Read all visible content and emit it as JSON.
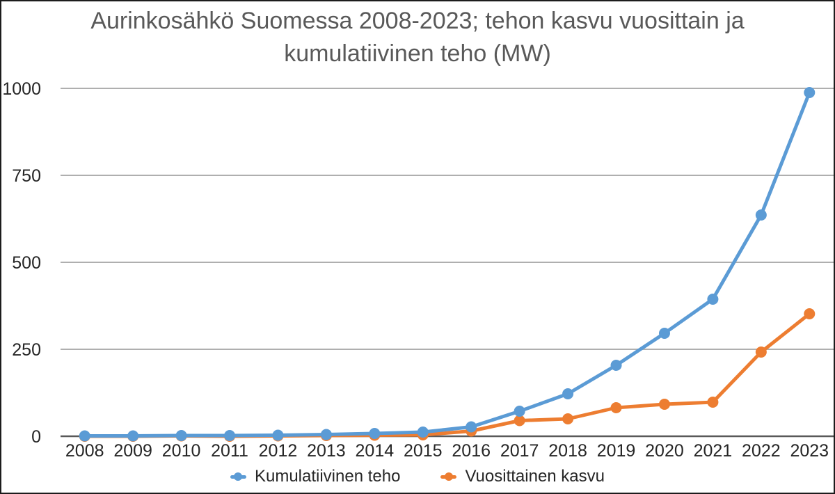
{
  "window": {
    "background": "#ffffff",
    "border_color": "#1c1c1c"
  },
  "chart_data": {
    "type": "line",
    "title": "Aurinkosähkö Suomessa 2008-2023; tehon kasvu vuosittain ja kumulatiivinen teho (MW)",
    "title_lines": [
      "Aurinkosähkö Suomessa 2008-2023; tehon kasvu vuosittain ja",
      "kumulatiivinen teho (MW)"
    ],
    "categories": [
      "2008",
      "2009",
      "2010",
      "2011",
      "2012",
      "2013",
      "2014",
      "2015",
      "2016",
      "2017",
      "2018",
      "2019",
      "2020",
      "2021",
      "2022",
      "2023"
    ],
    "series": [
      {
        "name": "Kumulatiivinen teho",
        "color": "#5B9BD5",
        "values": [
          1,
          1,
          2,
          2,
          3,
          5,
          8,
          12,
          27,
          72,
          122,
          204,
          296,
          394,
          636,
          988
        ]
      },
      {
        "name": "Vuosittainen kasvu",
        "color": "#ED7D31",
        "values": [
          0,
          0,
          1,
          0,
          1,
          2,
          3,
          4,
          15,
          45,
          50,
          82,
          92,
          98,
          242,
          352
        ]
      }
    ],
    "xlabel": "",
    "ylabel": "",
    "ylim": [
      0,
      1000
    ],
    "yticks": [
      0,
      250,
      500,
      750,
      1000
    ],
    "grid": true,
    "legend_position": "bottom"
  },
  "styles": {
    "title_color": "#595959",
    "tick_label_color": "#262626",
    "gridline_color": "#AFAFAF",
    "baseline_color": "#595959"
  }
}
